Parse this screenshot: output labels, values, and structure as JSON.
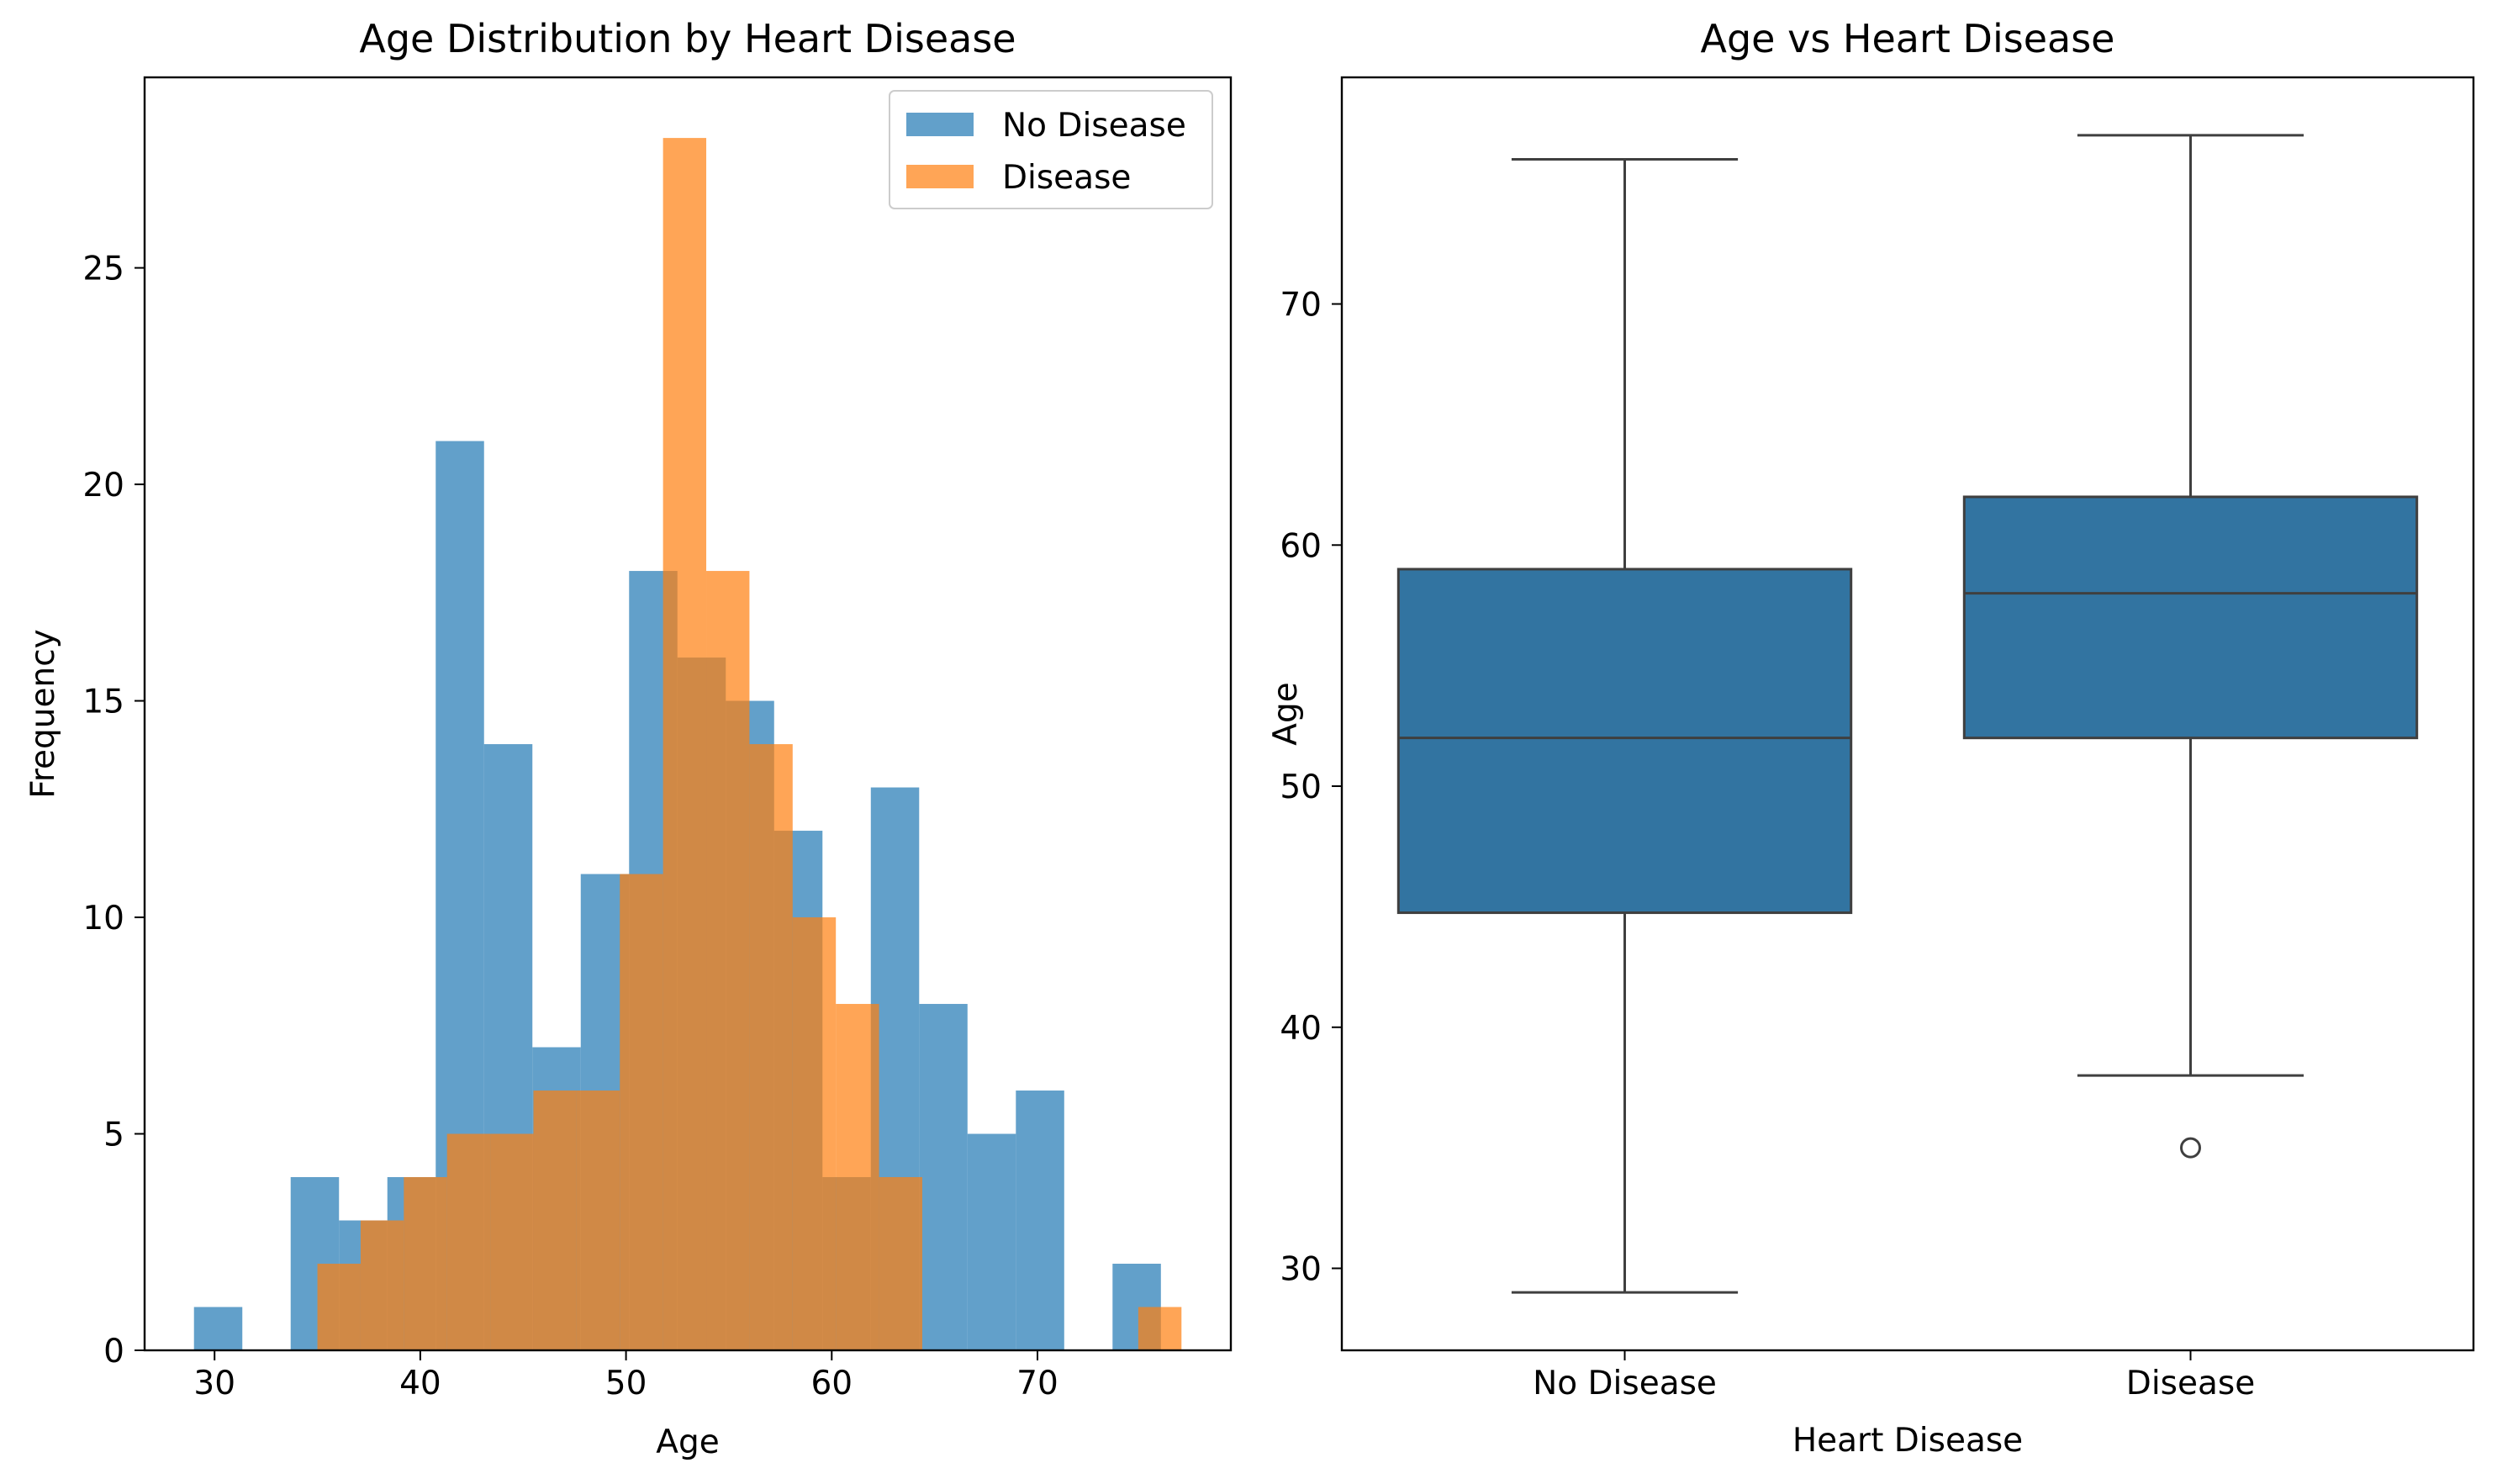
{
  "chart_data": [
    {
      "type": "bar",
      "subtype": "histogram",
      "title": "Age Distribution by Heart Disease",
      "xlabel": "Age",
      "ylabel": "Frequency",
      "xlim": [
        26.6,
        79.4
      ],
      "ylim": [
        0,
        29.4
      ],
      "xticks": [
        30,
        40,
        50,
        60,
        70
      ],
      "yticks": [
        0,
        5,
        10,
        15,
        20,
        25
      ],
      "legend": {
        "position": "top-right"
      },
      "series": [
        {
          "name": "No Disease",
          "color": "#1f77b4",
          "opacity": 0.7,
          "bin_width": 2.35,
          "bin_start": 29,
          "values": [
            1,
            0,
            4,
            3,
            4,
            21,
            14,
            7,
            11,
            18,
            16,
            15,
            12,
            4,
            13,
            8,
            5,
            6,
            0,
            2
          ]
        },
        {
          "name": "Disease",
          "color": "#ff7f0e",
          "opacity": 0.7,
          "bin_width": 2.1,
          "bin_start": 35,
          "values": [
            2,
            3,
            4,
            5,
            5,
            6,
            6,
            11,
            28,
            18,
            14,
            10,
            8,
            4,
            0,
            0,
            0,
            0,
            0,
            1
          ]
        }
      ]
    },
    {
      "type": "box",
      "title": "Age vs Heart Disease",
      "xlabel": "Heart Disease",
      "ylabel": "Age",
      "ylim": [
        26.6,
        79.4
      ],
      "yticks": [
        30,
        40,
        50,
        60,
        70
      ],
      "categories": [
        "No Disease",
        "Disease"
      ],
      "color": "#3274a1",
      "boxes": [
        {
          "category": "No Disease",
          "whisker_low": 29,
          "q1": 44.75,
          "median": 52,
          "q3": 59,
          "whisker_high": 76,
          "outliers": []
        },
        {
          "category": "Disease",
          "whisker_low": 38,
          "q1": 52,
          "median": 58,
          "q3": 62,
          "whisker_high": 77,
          "outliers": [
            35
          ]
        }
      ]
    }
  ]
}
